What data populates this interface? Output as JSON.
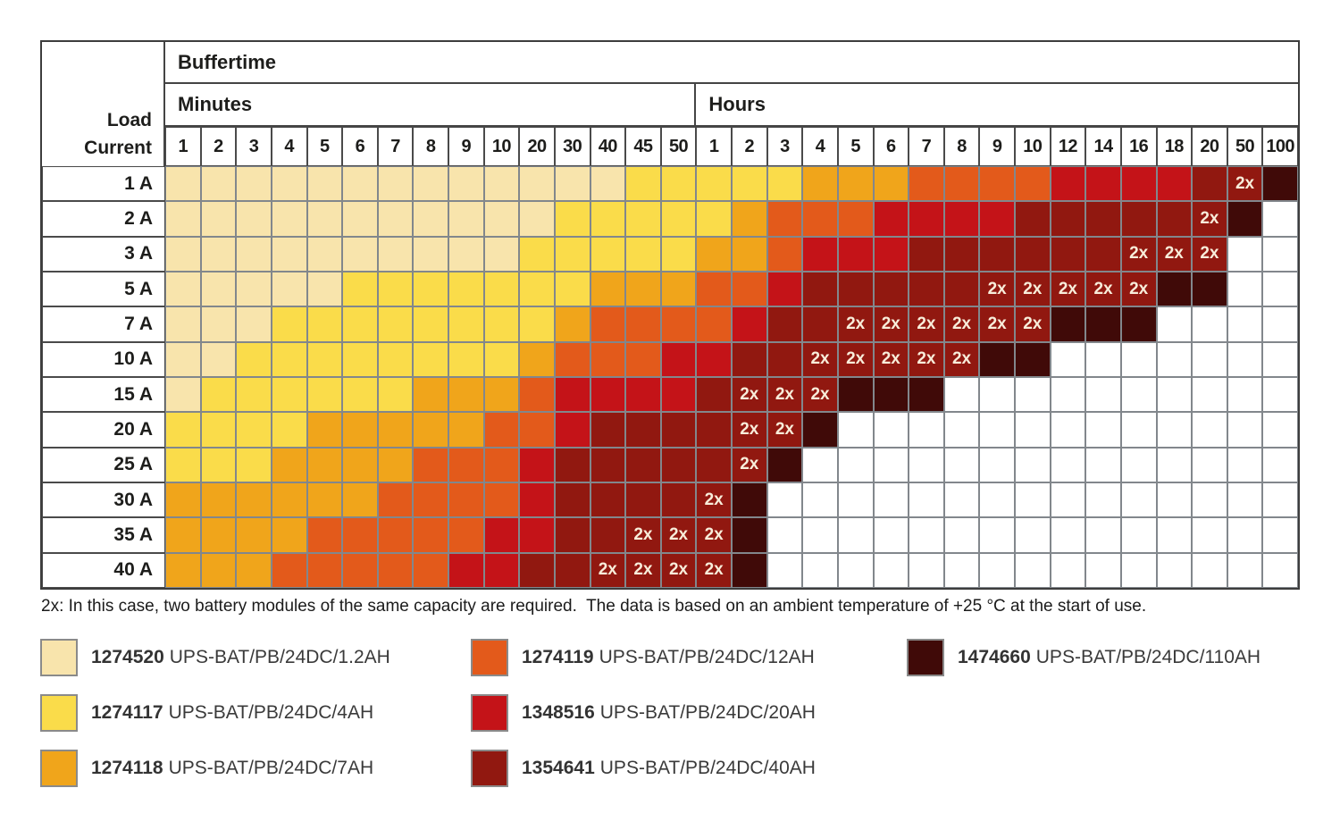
{
  "table": {
    "corner_line1": "Load",
    "corner_line2": "Current"
  },
  "marker_2x": "2x",
  "footnote": "2x: In this case, two battery modules of the same capacity are required.  The data is based on an ambient temperature of +25 °C at the start of use.",
  "batteries": {
    "1": {
      "part": "1274520",
      "name": "UPS-BAT/PB/24DC/1.2AH",
      "color": "#f8e4ac"
    },
    "2": {
      "part": "1274117",
      "name": "UPS-BAT/PB/24DC/4AH",
      "color": "#fadc4a"
    },
    "3": {
      "part": "1274118",
      "name": "UPS-BAT/PB/24DC/7AH",
      "color": "#f0a51b"
    },
    "4": {
      "part": "1274119",
      "name": "UPS-BAT/PB/24DC/12AH",
      "color": "#e35a1b"
    },
    "5": {
      "part": "1348516",
      "name": "UPS-BAT/PB/24DC/20AH",
      "color": "#c41318"
    },
    "6": {
      "part": "1354641",
      "name": "UPS-BAT/PB/24DC/40AH",
      "color": "#911810"
    },
    "7": {
      "part": "1474660",
      "name": "UPS-BAT/PB/24DC/110AH",
      "color": "#400a08"
    }
  },
  "legend_columns": {
    "lefts": [
      45,
      527,
      1015
    ],
    "groups": [
      [
        "1",
        "2",
        "3"
      ],
      [
        "4",
        "5",
        "6"
      ],
      [
        "7"
      ]
    ]
  },
  "chart_data": {
    "type": "heatmap",
    "title": "Buffertime",
    "row_axis_label": "Load Current",
    "legend_note": "cell code = battery part key (1-7); suffix x = two battery modules (2x) required; empty = no data",
    "col_groups": [
      {
        "label": "Minutes",
        "unit": "min",
        "ticks": [
          "1",
          "2",
          "3",
          "4",
          "5",
          "6",
          "7",
          "8",
          "9",
          "10",
          "20",
          "30",
          "40",
          "45",
          "50"
        ]
      },
      {
        "label": "Hours",
        "unit": "h",
        "ticks": [
          "1",
          "2",
          "3",
          "4",
          "5",
          "6",
          "7",
          "8",
          "9",
          "10",
          "12",
          "14",
          "16",
          "18",
          "20",
          "50",
          "100"
        ]
      }
    ],
    "rows": [
      {
        "label": "1 A",
        "cells": [
          "1",
          "1",
          "1",
          "1",
          "1",
          "1",
          "1",
          "1",
          "1",
          "1",
          "1",
          "1",
          "1",
          "2",
          "2",
          "2",
          "2",
          "2",
          "3",
          "3",
          "3",
          "4",
          "4",
          "4",
          "4",
          "5",
          "5",
          "5",
          "5",
          "6",
          "6x",
          "7"
        ]
      },
      {
        "label": "2 A",
        "cells": [
          "1",
          "1",
          "1",
          "1",
          "1",
          "1",
          "1",
          "1",
          "1",
          "1",
          "1",
          "2",
          "2",
          "2",
          "2",
          "2",
          "3",
          "4",
          "4",
          "4",
          "5",
          "5",
          "5",
          "5",
          "6",
          "6",
          "6",
          "6",
          "6",
          "6x",
          "7",
          ""
        ]
      },
      {
        "label": "3 A",
        "cells": [
          "1",
          "1",
          "1",
          "1",
          "1",
          "1",
          "1",
          "1",
          "1",
          "1",
          "2",
          "2",
          "2",
          "2",
          "2",
          "3",
          "3",
          "4",
          "5",
          "5",
          "5",
          "6",
          "6",
          "6",
          "6",
          "6",
          "6",
          "6x",
          "6x",
          "6x",
          "",
          ""
        ]
      },
      {
        "label": "5 A",
        "cells": [
          "1",
          "1",
          "1",
          "1",
          "1",
          "2",
          "2",
          "2",
          "2",
          "2",
          "2",
          "2",
          "3",
          "3",
          "3",
          "4",
          "4",
          "5",
          "6",
          "6",
          "6",
          "6",
          "6",
          "6x",
          "6x",
          "6x",
          "6x",
          "6x",
          "7",
          "7",
          "",
          ""
        ]
      },
      {
        "label": "7 A",
        "cells": [
          "1",
          "1",
          "1",
          "2",
          "2",
          "2",
          "2",
          "2",
          "2",
          "2",
          "2",
          "3",
          "4",
          "4",
          "4",
          "4",
          "5",
          "6",
          "6",
          "6x",
          "6x",
          "6x",
          "6x",
          "6x",
          "6x",
          "7",
          "7",
          "7",
          "",
          "",
          "",
          ""
        ]
      },
      {
        "label": "10 A",
        "cells": [
          "1",
          "1",
          "2",
          "2",
          "2",
          "2",
          "2",
          "2",
          "2",
          "2",
          "3",
          "4",
          "4",
          "4",
          "5",
          "5",
          "6",
          "6",
          "6x",
          "6x",
          "6x",
          "6x",
          "6x",
          "7",
          "7",
          "",
          "",
          "",
          "",
          "",
          "",
          ""
        ]
      },
      {
        "label": "15 A",
        "cells": [
          "1",
          "2",
          "2",
          "2",
          "2",
          "2",
          "2",
          "3",
          "3",
          "3",
          "4",
          "5",
          "5",
          "5",
          "5",
          "6",
          "6x",
          "6x",
          "6x",
          "7",
          "7",
          "7",
          "",
          "",
          "",
          "",
          "",
          "",
          "",
          "",
          "",
          ""
        ]
      },
      {
        "label": "20 A",
        "cells": [
          "2",
          "2",
          "2",
          "2",
          "3",
          "3",
          "3",
          "3",
          "3",
          "4",
          "4",
          "5",
          "6",
          "6",
          "6",
          "6",
          "6x",
          "6x",
          "7",
          "",
          "",
          "",
          "",
          "",
          "",
          "",
          "",
          "",
          "",
          "",
          "",
          ""
        ]
      },
      {
        "label": "25 A",
        "cells": [
          "2",
          "2",
          "2",
          "3",
          "3",
          "3",
          "3",
          "4",
          "4",
          "4",
          "5",
          "6",
          "6",
          "6",
          "6",
          "6",
          "6x",
          "7",
          "",
          "",
          "",
          "",
          "",
          "",
          "",
          "",
          "",
          "",
          "",
          "",
          "",
          ""
        ]
      },
      {
        "label": "30 A",
        "cells": [
          "3",
          "3",
          "3",
          "3",
          "3",
          "3",
          "4",
          "4",
          "4",
          "4",
          "5",
          "6",
          "6",
          "6",
          "6",
          "6x",
          "7",
          "",
          "",
          "",
          "",
          "",
          "",
          "",
          "",
          "",
          "",
          "",
          "",
          "",
          "",
          ""
        ]
      },
      {
        "label": "35 A",
        "cells": [
          "3",
          "3",
          "3",
          "3",
          "4",
          "4",
          "4",
          "4",
          "4",
          "5",
          "5",
          "6",
          "6",
          "6x",
          "6x",
          "6x",
          "7",
          "",
          "",
          "",
          "",
          "",
          "",
          "",
          "",
          "",
          "",
          "",
          "",
          "",
          "",
          ""
        ]
      },
      {
        "label": "40 A",
        "cells": [
          "3",
          "3",
          "3",
          "4",
          "4",
          "4",
          "4",
          "4",
          "5",
          "5",
          "6",
          "6",
          "6x",
          "6x",
          "6x",
          "6x",
          "7",
          "",
          "",
          "",
          "",
          "",
          "",
          "",
          "",
          "",
          "",
          "",
          "",
          "",
          "",
          ""
        ]
      }
    ]
  }
}
